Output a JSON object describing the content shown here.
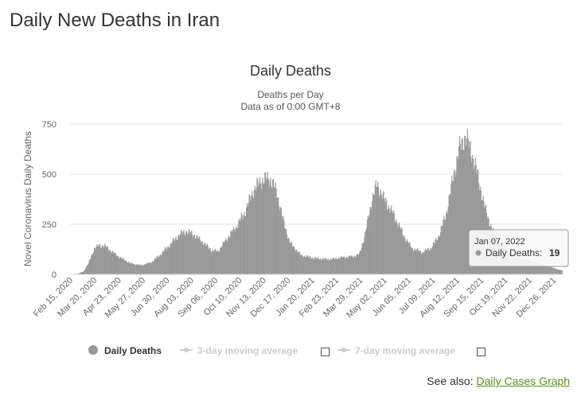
{
  "page": {
    "title": "Daily New Deaths in Iran"
  },
  "see_also": {
    "label": "See also:",
    "link_text": "Daily Cases Graph"
  },
  "tooltip": {
    "date": "Jan 07, 2022",
    "series_label": "Daily Deaths:",
    "value": "19"
  },
  "legend": {
    "items": [
      {
        "label": "Daily Deaths",
        "color": "#999999",
        "active": true
      },
      {
        "label": "3-day moving average",
        "color": "#cccccc",
        "active": false
      },
      {
        "label": "7-day moving average",
        "color": "#cccccc",
        "active": false
      }
    ]
  },
  "chart_data": {
    "type": "bar",
    "title": "Daily Deaths",
    "subtitle_line1": "Deaths per Day",
    "subtitle_line2": "Data as of 0:00 GMT+8",
    "ylabel": "Novel Coronavirus Daily Deaths",
    "xlabel": "",
    "ylim": [
      0,
      750
    ],
    "yticks": [
      0,
      250,
      500,
      750
    ],
    "grid": true,
    "series_color": "#999999",
    "x_start": "2020-02-15",
    "x_end": "2022-01-07",
    "xticks": [
      "Feb 15, 2020",
      "Mar 20, 2020",
      "Apr 23, 2020",
      "May 27, 2020",
      "Jun 30, 2020",
      "Aug 03, 2020",
      "Sep 06, 2020",
      "Oct 10, 2020",
      "Nov 13, 2020",
      "Dec 17, 2020",
      "Jan 20, 2021",
      "Feb 23, 2021",
      "Mar 29, 2021",
      "May 02, 2021",
      "Jun 05, 2021",
      "Jul 09, 2021",
      "Aug 12, 2021",
      "Sep 15, 2021",
      "Oct 19, 2021",
      "Nov 22, 2021",
      "Dec 26, 2021"
    ],
    "series": [
      {
        "name": "Daily Deaths",
        "points": [
          [
            "2020-02-15",
            0
          ],
          [
            "2020-02-26",
            3
          ],
          [
            "2020-03-05",
            15
          ],
          [
            "2020-03-12",
            55
          ],
          [
            "2020-03-20",
            130
          ],
          [
            "2020-03-28",
            145
          ],
          [
            "2020-04-05",
            140
          ],
          [
            "2020-04-15",
            110
          ],
          [
            "2020-04-25",
            85
          ],
          [
            "2020-05-10",
            55
          ],
          [
            "2020-05-25",
            45
          ],
          [
            "2020-06-08",
            60
          ],
          [
            "2020-06-20",
            95
          ],
          [
            "2020-07-05",
            150
          ],
          [
            "2020-07-18",
            200
          ],
          [
            "2020-07-28",
            215
          ],
          [
            "2020-08-08",
            195
          ],
          [
            "2020-08-20",
            160
          ],
          [
            "2020-09-01",
            120
          ],
          [
            "2020-09-10",
            115
          ],
          [
            "2020-09-22",
            175
          ],
          [
            "2020-10-05",
            235
          ],
          [
            "2020-10-18",
            310
          ],
          [
            "2020-10-30",
            420
          ],
          [
            "2020-11-10",
            470
          ],
          [
            "2020-11-22",
            480
          ],
          [
            "2020-12-02",
            410
          ],
          [
            "2020-12-10",
            280
          ],
          [
            "2020-12-20",
            160
          ],
          [
            "2021-01-05",
            95
          ],
          [
            "2021-01-25",
            80
          ],
          [
            "2021-02-15",
            75
          ],
          [
            "2021-03-05",
            85
          ],
          [
            "2021-03-20",
            90
          ],
          [
            "2021-03-28",
            100
          ],
          [
            "2021-04-05",
            200
          ],
          [
            "2021-04-15",
            380
          ],
          [
            "2021-04-22",
            450
          ],
          [
            "2021-05-01",
            380
          ],
          [
            "2021-05-15",
            300
          ],
          [
            "2021-05-30",
            190
          ],
          [
            "2021-06-10",
            130
          ],
          [
            "2021-06-25",
            110
          ],
          [
            "2021-07-08",
            135
          ],
          [
            "2021-07-18",
            195
          ],
          [
            "2021-07-28",
            300
          ],
          [
            "2021-08-05",
            450
          ],
          [
            "2021-08-15",
            620
          ],
          [
            "2021-08-24",
            690
          ],
          [
            "2021-09-01",
            620
          ],
          [
            "2021-09-10",
            500
          ],
          [
            "2021-09-20",
            340
          ],
          [
            "2021-10-01",
            220
          ],
          [
            "2021-10-15",
            150
          ],
          [
            "2021-10-30",
            110
          ],
          [
            "2021-11-15",
            80
          ],
          [
            "2021-12-01",
            60
          ],
          [
            "2021-12-15",
            45
          ],
          [
            "2021-12-28",
            30
          ],
          [
            "2022-01-07",
            19
          ]
        ]
      }
    ]
  }
}
